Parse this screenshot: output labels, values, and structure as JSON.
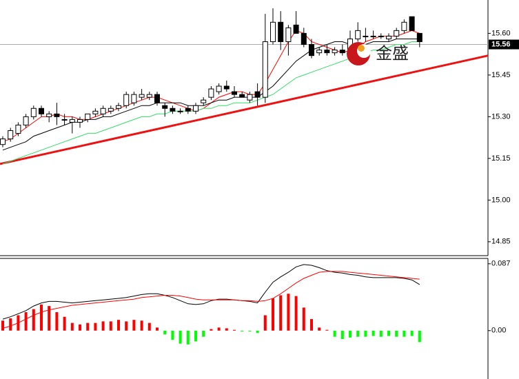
{
  "chart_data": [
    {
      "type": "candlestick",
      "open": [
        15.2,
        15.22,
        15.24,
        15.27,
        15.3,
        15.33,
        15.3,
        15.31,
        15.29,
        15.28,
        15.28,
        15.29,
        15.31,
        15.31,
        15.32,
        15.33,
        15.34,
        15.35,
        15.37,
        15.37,
        15.38,
        15.34,
        15.33,
        15.32,
        15.33,
        15.32,
        15.35,
        15.37,
        15.39,
        15.41,
        15.39,
        15.38,
        15.36,
        15.39,
        15.37,
        15.57,
        15.64,
        15.57,
        15.63,
        15.6,
        15.56,
        15.53,
        15.54,
        15.53,
        15.54,
        15.53,
        15.58,
        15.59,
        15.59,
        15.59,
        15.58,
        15.59,
        15.61,
        15.66,
        15.6
      ],
      "high": [
        15.23,
        15.26,
        15.28,
        15.31,
        15.34,
        15.34,
        15.32,
        15.35,
        15.31,
        15.3,
        15.3,
        15.31,
        15.33,
        15.34,
        15.34,
        15.35,
        15.39,
        15.39,
        15.4,
        15.39,
        15.39,
        15.35,
        15.34,
        15.33,
        15.34,
        15.35,
        15.37,
        15.41,
        15.42,
        15.43,
        15.41,
        15.39,
        15.39,
        15.42,
        15.67,
        15.69,
        15.68,
        15.63,
        15.68,
        15.62,
        15.58,
        15.55,
        15.56,
        15.55,
        15.56,
        15.61,
        15.64,
        15.62,
        15.61,
        15.6,
        15.6,
        15.62,
        15.65,
        15.66,
        15.6
      ],
      "low": [
        15.19,
        15.21,
        15.23,
        15.26,
        15.29,
        15.3,
        15.28,
        15.27,
        15.27,
        15.24,
        15.26,
        15.28,
        15.3,
        15.3,
        15.31,
        15.32,
        15.33,
        15.34,
        15.36,
        15.36,
        15.34,
        15.3,
        15.31,
        15.31,
        15.31,
        15.31,
        15.34,
        15.36,
        15.38,
        15.39,
        15.37,
        15.37,
        15.35,
        15.34,
        15.35,
        15.56,
        15.54,
        15.52,
        15.6,
        15.55,
        15.51,
        15.52,
        15.52,
        15.52,
        15.52,
        15.52,
        15.57,
        15.57,
        15.58,
        15.58,
        15.57,
        15.58,
        15.6,
        15.61,
        15.55
      ],
      "close": [
        15.22,
        15.25,
        15.27,
        15.3,
        15.33,
        15.31,
        15.31,
        15.3,
        15.29,
        15.29,
        15.29,
        15.31,
        15.32,
        15.33,
        15.33,
        15.34,
        15.38,
        15.38,
        15.38,
        15.38,
        15.35,
        15.33,
        15.32,
        15.32,
        15.32,
        15.34,
        15.36,
        15.4,
        15.41,
        15.4,
        15.38,
        15.37,
        15.38,
        15.37,
        15.57,
        15.64,
        15.57,
        15.62,
        15.6,
        15.56,
        15.52,
        15.54,
        15.53,
        15.54,
        15.53,
        15.58,
        15.61,
        15.59,
        15.59,
        15.59,
        15.59,
        15.61,
        15.64,
        15.61,
        15.57
      ],
      "series": [
        {
          "color": "#ff0000",
          "values": [
            15.21,
            15.22,
            15.24,
            15.26,
            15.28,
            15.3,
            15.3,
            15.31,
            15.3,
            15.3,
            15.29,
            15.29,
            15.3,
            15.31,
            15.32,
            15.33,
            15.34,
            15.35,
            15.36,
            15.37,
            15.37,
            15.36,
            15.35,
            15.34,
            15.33,
            15.32,
            15.33,
            15.35,
            15.37,
            15.38,
            15.39,
            15.39,
            15.38,
            15.38,
            15.42,
            15.47,
            15.52,
            15.57,
            15.61,
            15.6,
            15.57,
            15.56,
            15.55,
            15.54,
            15.53,
            15.54,
            15.55,
            15.57,
            15.58,
            15.59,
            15.59,
            15.59,
            15.6,
            15.61,
            15.6
          ]
        },
        {
          "color": "#000000",
          "values": [
            15.18,
            15.19,
            15.2,
            15.21,
            15.23,
            15.24,
            15.25,
            15.26,
            15.27,
            15.28,
            15.28,
            15.29,
            15.29,
            15.3,
            15.3,
            15.31,
            15.32,
            15.33,
            15.34,
            15.34,
            15.35,
            15.35,
            15.35,
            15.35,
            15.34,
            15.34,
            15.34,
            15.35,
            15.36,
            15.36,
            15.37,
            15.37,
            15.37,
            15.37,
            15.39,
            15.41,
            15.44,
            15.47,
            15.5,
            15.52,
            15.54,
            15.55,
            15.56,
            15.57,
            15.57,
            15.56,
            15.56,
            15.56,
            15.57,
            15.57,
            15.57,
            15.58,
            15.58,
            15.58,
            15.58
          ]
        },
        {
          "color": "#33dd66",
          "values": [
            15.13,
            15.14,
            15.15,
            15.16,
            15.17,
            15.18,
            15.19,
            15.2,
            15.21,
            15.22,
            15.23,
            15.24,
            15.24,
            15.25,
            15.26,
            15.27,
            15.28,
            15.29,
            15.3,
            15.3,
            15.31,
            15.31,
            15.32,
            15.32,
            15.32,
            15.32,
            15.33,
            15.33,
            15.34,
            15.34,
            15.35,
            15.35,
            15.35,
            15.36,
            15.37,
            15.38,
            15.4,
            15.42,
            15.44,
            15.45,
            15.46,
            15.47,
            15.48,
            15.49,
            15.5,
            15.51,
            15.52,
            15.53,
            15.54,
            15.54,
            15.55,
            15.56,
            15.56,
            15.57,
            15.57
          ]
        }
      ],
      "trendline": {
        "color": "#ee1111",
        "values": [
          15.13,
          15.52
        ]
      },
      "last_price": 15.56,
      "logo_text": "金盛",
      "ylim": [
        14.8,
        15.72
      ],
      "yticks": [
        {
          "value": 15.6,
          "label": "15.60"
        },
        15.45,
        {
          "value": 15.3,
          "label": "15.30"
        },
        15.15,
        {
          "value": 15.0,
          "label": "15.00"
        },
        14.85
      ]
    },
    {
      "type": "macd",
      "histogram": [
        0.013,
        0.016,
        0.02,
        0.024,
        0.028,
        0.034,
        0.032,
        0.024,
        0.018,
        0.01,
        0.008,
        0.01,
        0.01,
        0.012,
        0.012,
        0.014,
        0.012,
        0.014,
        0.013,
        0.01,
        0.004,
        -0.005,
        -0.012,
        -0.017,
        -0.018,
        -0.014,
        -0.008,
        0.002,
        0.004,
        0.003,
        0.001,
        -0.001,
        -0.001,
        -0.003,
        0.02,
        0.042,
        0.046,
        0.048,
        0.045,
        0.03,
        0.015,
        0.004,
        0.001,
        -0.008,
        -0.011,
        -0.009,
        -0.008,
        -0.008,
        -0.007,
        -0.008,
        -0.007,
        -0.008,
        -0.008,
        -0.007,
        -0.015
      ],
      "positive_color": "#ff0000",
      "negative_color": "#00ff00",
      "series": [
        {
          "color": "#000000",
          "values": [
            0.015,
            0.018,
            0.022,
            0.026,
            0.032,
            0.036,
            0.038,
            0.038,
            0.037,
            0.036,
            0.037,
            0.038,
            0.039,
            0.04,
            0.041,
            0.042,
            0.043,
            0.045,
            0.047,
            0.048,
            0.048,
            0.046,
            0.043,
            0.039,
            0.035,
            0.034,
            0.035,
            0.039,
            0.041,
            0.041,
            0.04,
            0.039,
            0.038,
            0.036,
            0.05,
            0.063,
            0.07,
            0.076,
            0.083,
            0.086,
            0.085,
            0.082,
            0.078,
            0.076,
            0.075,
            0.073,
            0.072,
            0.07,
            0.069,
            0.069,
            0.069,
            0.069,
            0.068,
            0.066,
            0.06
          ]
        },
        {
          "color": "#ff0000",
          "values": [
            0.003,
            0.006,
            0.01,
            0.015,
            0.02,
            0.024,
            0.027,
            0.029,
            0.031,
            0.033,
            0.034,
            0.035,
            0.036,
            0.037,
            0.038,
            0.039,
            0.04,
            0.041,
            0.043,
            0.044,
            0.045,
            0.046,
            0.046,
            0.045,
            0.043,
            0.041,
            0.04,
            0.04,
            0.04,
            0.04,
            0.04,
            0.039,
            0.039,
            0.038,
            0.039,
            0.042,
            0.048,
            0.055,
            0.062,
            0.068,
            0.072,
            0.076,
            0.077,
            0.077,
            0.077,
            0.076,
            0.075,
            0.074,
            0.073,
            0.072,
            0.071,
            0.07,
            0.069,
            0.068,
            0.067
          ]
        }
      ],
      "ylim": [
        -0.063,
        0.094
      ],
      "yticks": [
        0.087,
        {
          "value": 0,
          "label": "0.00"
        }
      ]
    }
  ]
}
